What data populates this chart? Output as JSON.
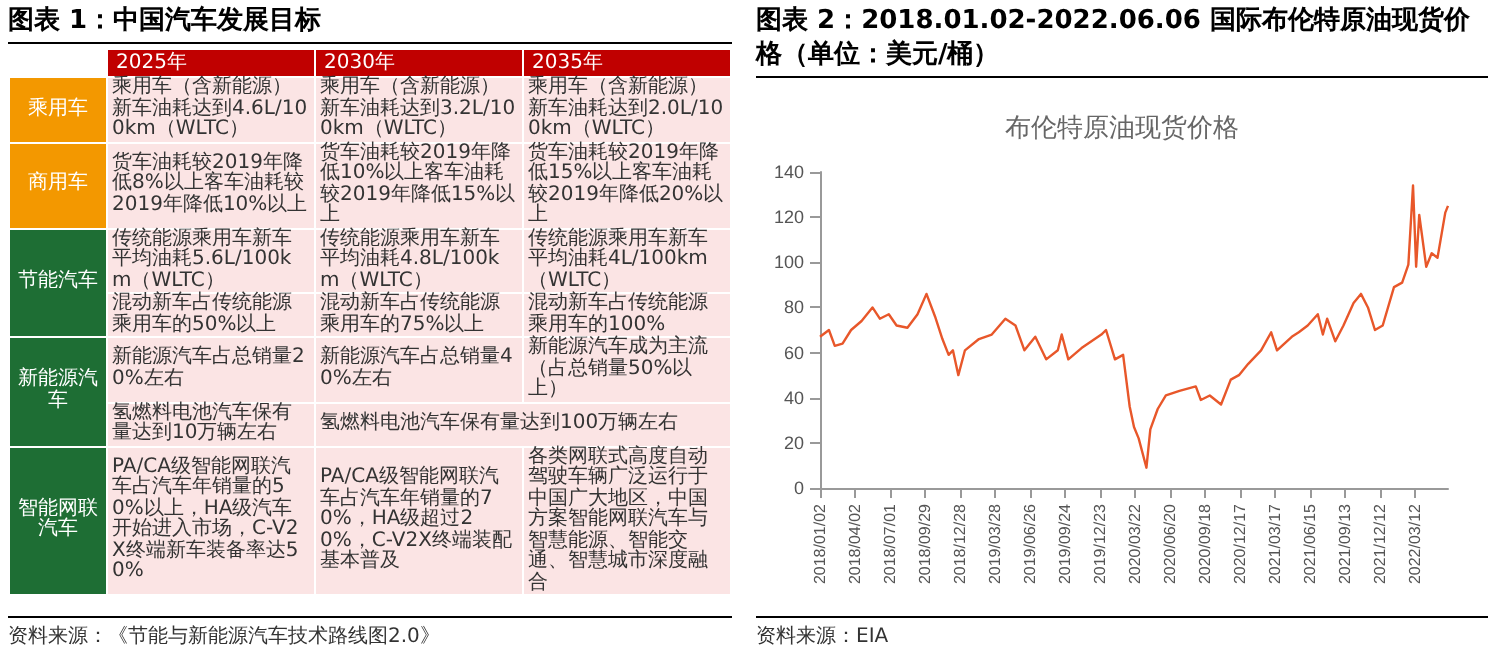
{
  "chart_data": [
    {
      "type": "other",
      "title": "图表 1：中国汽车发展目标",
      "categories": [
        "2025年",
        "2030年",
        "2035年"
      ],
      "y_categories": [
        "乘用车",
        "商用车",
        "节能汽车",
        null,
        "新能源汽车",
        null,
        "智能网联汽车"
      ],
      "cell_labels": [
        [
          "乘用车（含新能源）新车油耗达到4.6L/100km（WLTC）",
          "乘用车（含新能源）新车油耗达到3.2L/100km（WLTC）",
          "乘用车（含新能源）新车油耗达到2.0L/100km（WLTC）"
        ],
        [
          "货车油耗较2019年降低8%以上客车油耗较2019年降低10%以上",
          "货车油耗较2019年降低10%以上客车油耗较2019年降低15%以上",
          "货车油耗较2019年降低15%以上客车油耗较2019年降低20%以上"
        ],
        [
          "传统能源乘用车新车平均油耗5.6L/100km（WLTC）",
          "传统能源乘用车新车平均油耗4.8L/100km（WLTC）",
          "传统能源乘用车新车平均油耗4L/100km（WLTC）"
        ],
        [
          "混动新车占传统能源乘用车的50%以上",
          "混动新车占传统能源乘用车的75%以上",
          "混动新车占传统能源乘用车的100%"
        ],
        [
          "新能源汽车占总销量20%左右",
          "新能源汽车占总销量40%左右",
          "新能源汽车成为主流（占总销量50%以上）"
        ],
        [
          "氢燃料电池汽车保有量达到10万辆左右",
          "氢燃料电池汽车保有量达到100万辆左右",
          null
        ],
        [
          "PA/CA级智能网联汽车占汽车年销量的50%以上，HA级汽车开始进入市场，C-V2X终端新车装备率达50%",
          "PA/CA级智能网联汽车占汽车年销量的70%，HA级超过20%，C-V2X终端装配基本普及",
          "各类网联式高度自动驾驶车辆广泛运行于中国广大地区，中国方案智能网联汽车与智慧能源、智能交通、智慧城市深度融合"
        ]
      ],
      "annotations": [
        "资料来源：《节能与新能源汽车技术路线图2.0》"
      ]
    },
    {
      "type": "line",
      "title": "图表 2：2018.01.02-2022.06.06 国际布伦特原油现货价格（单位：美元/桶）",
      "subtitle": "布伦特原油现货价格",
      "x": [
        "2018-01-02",
        "2018-01-25",
        "2018-02-09",
        "2018-03-01",
        "2018-03-23",
        "2018-04-19",
        "2018-05-17",
        "2018-06-05",
        "2018-06-28",
        "2018-07-18",
        "2018-08-15",
        "2018-09-10",
        "2018-10-03",
        "2018-10-25",
        "2018-11-13",
        "2018-11-29",
        "2018-12-10",
        "2018-12-24",
        "2019-01-10",
        "2019-02-15",
        "2019-03-20",
        "2019-04-24",
        "2019-05-20",
        "2019-06-12",
        "2019-07-10",
        "2019-08-07",
        "2019-09-06",
        "2019-09-16",
        "2019-10-03",
        "2019-11-06",
        "2019-12-27",
        "2020-01-08",
        "2020-01-31",
        "2020-02-21",
        "2020-03-09",
        "2020-03-20",
        "2020-04-01",
        "2020-04-21",
        "2020-05-01",
        "2020-05-20",
        "2020-06-10",
        "2020-07-15",
        "2020-08-26",
        "2020-09-08",
        "2020-10-01",
        "2020-10-30",
        "2020-11-24",
        "2020-12-15",
        "2021-01-08",
        "2021-02-10",
        "2021-03-08",
        "2021-03-23",
        "2021-04-30",
        "2021-05-18",
        "2021-06-10",
        "2021-07-06",
        "2021-07-19",
        "2021-07-30",
        "2021-08-20",
        "2021-09-10",
        "2021-10-06",
        "2021-10-25",
        "2021-11-12",
        "2021-11-30",
        "2021-12-20",
        "2022-01-18",
        "2022-02-08",
        "2022-02-24",
        "2022-03-08",
        "2022-03-16",
        "2022-03-24",
        "2022-04-11",
        "2022-04-25",
        "2022-05-10",
        "2022-05-30",
        "2022-06-06"
      ],
      "series": [
        {
          "color": "#e8572a",
          "values": [
            67,
            70,
            63,
            64,
            70,
            74,
            80,
            75,
            77,
            72,
            71,
            77,
            86,
            76,
            66,
            59,
            61,
            50,
            61,
            66,
            68,
            75,
            72,
            61,
            67,
            57,
            61,
            68,
            57,
            62,
            68,
            70,
            57,
            59,
            36,
            27,
            22,
            9,
            26,
            35,
            41,
            43,
            45,
            39,
            41,
            37,
            48,
            50,
            55,
            61,
            69,
            61,
            67,
            69,
            72,
            77,
            68,
            75,
            65,
            72,
            82,
            86,
            80,
            70,
            72,
            89,
            91,
            99,
            134,
            98,
            121,
            98,
            104,
            102,
            122,
            125
          ]
        }
      ],
      "xlim": [
        "2018-01-02",
        "2022-06-06"
      ],
      "xticks": [
        {
          "value": "2018-01-02",
          "label": "2018/01/02"
        },
        {
          "value": "2018-04-02",
          "label": "2018/04/02"
        },
        {
          "value": "2018-07-01",
          "label": "2018/07/01"
        },
        {
          "value": "2018-09-29",
          "label": "2018/09/29"
        },
        {
          "value": "2018-12-28",
          "label": "2018/12/28"
        },
        {
          "value": "2019-03-28",
          "label": "2019/03/28"
        },
        {
          "value": "2019-06-26",
          "label": "2019/06/26"
        },
        {
          "value": "2019-09-24",
          "label": "2019/09/24"
        },
        {
          "value": "2019-12-23",
          "label": "2019/12/23"
        },
        {
          "value": "2020-03-22",
          "label": "2020/03/22"
        },
        {
          "value": "2020-06-20",
          "label": "2020/06/20"
        },
        {
          "value": "2020-09-18",
          "label": "2020/09/18"
        },
        {
          "value": "2020-12-17",
          "label": "2020/12/17"
        },
        {
          "value": "2021-03-17",
          "label": "2021/03/17"
        },
        {
          "value": "2021-06-15",
          "label": "2021/06/15"
        },
        {
          "value": "2021-09-13",
          "label": "2021/09/13"
        },
        {
          "value": "2021-12-12",
          "label": "2021/12/12"
        },
        {
          "value": "2022-03-12",
          "label": "2022/03/12"
        }
      ],
      "ylim": [
        0,
        140
      ],
      "yticks": [
        0,
        20,
        40,
        60,
        80,
        100,
        120,
        140
      ],
      "annotations": [
        "资料来源：EIA"
      ]
    }
  ]
}
